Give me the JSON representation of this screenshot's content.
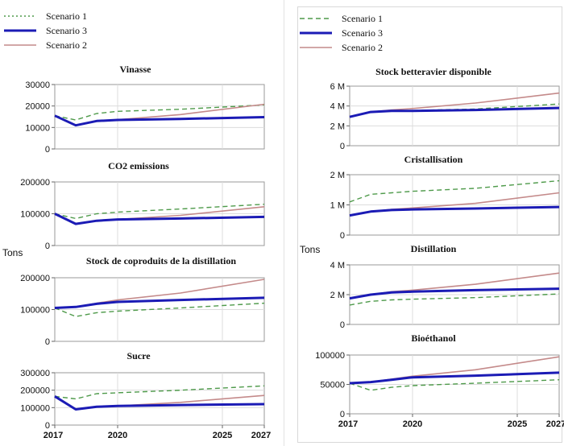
{
  "ylabel_left": "Tons",
  "ylabel_right": "Tons",
  "legend": [
    {
      "name": "Scenario 1",
      "color": "#4e9a4a",
      "style": "dotted"
    },
    {
      "name": "Scenario 3",
      "color": "#1b1bb5",
      "style": "solid-thick"
    },
    {
      "name": "Scenario 2",
      "color": "#c48a8a",
      "style": "solid"
    }
  ],
  "chart_data": [
    {
      "type": "line",
      "title": "Vinasse",
      "ylim": [
        0,
        30000
      ],
      "yticks": [
        0,
        10000,
        20000,
        30000
      ],
      "yticklabels": [
        "0",
        "10000",
        "20000",
        "30000"
      ],
      "xlim": [
        2017,
        2027
      ],
      "xticks": [
        2017,
        2020,
        2025,
        2027
      ],
      "series": [
        {
          "name": "Scenario 1",
          "x": [
            2017,
            2018,
            2019,
            2020,
            2023,
            2027
          ],
          "y": [
            15500,
            13500,
            16500,
            17500,
            18500,
            20500
          ]
        },
        {
          "name": "Scenario 3",
          "x": [
            2017,
            2018,
            2019,
            2020,
            2023,
            2027
          ],
          "y": [
            15500,
            11000,
            13000,
            13500,
            14000,
            14800
          ]
        },
        {
          "name": "Scenario 2",
          "x": [
            2017,
            2018,
            2019,
            2020,
            2023,
            2027
          ],
          "y": [
            15500,
            11000,
            13000,
            13600,
            16000,
            20800
          ]
        }
      ]
    },
    {
      "type": "line",
      "title": "CO2 emissions",
      "ylim": [
        0,
        200000
      ],
      "yticks": [
        0,
        100000,
        200000
      ],
      "yticklabels": [
        "0",
        "100000",
        "200000"
      ],
      "xlim": [
        2017,
        2027
      ],
      "xticks": [
        2017,
        2020,
        2025,
        2027
      ],
      "series": [
        {
          "name": "Scenario 1",
          "x": [
            2017,
            2018,
            2019,
            2020,
            2023,
            2027
          ],
          "y": [
            100000,
            85000,
            100000,
            105000,
            115000,
            130000
          ]
        },
        {
          "name": "Scenario 3",
          "x": [
            2017,
            2018,
            2019,
            2020,
            2023,
            2027
          ],
          "y": [
            100000,
            68000,
            78000,
            82000,
            85000,
            90000
          ]
        },
        {
          "name": "Scenario 2",
          "x": [
            2017,
            2018,
            2019,
            2020,
            2023,
            2027
          ],
          "y": [
            100000,
            68000,
            78000,
            82000,
            95000,
            122000
          ]
        }
      ]
    },
    {
      "type": "line",
      "title": "Stock de coproduits de la distillation",
      "ylim": [
        0,
        200000
      ],
      "yticks": [
        0,
        100000,
        200000
      ],
      "yticklabels": [
        "0",
        "100000",
        "200000"
      ],
      "xlim": [
        2017,
        2027
      ],
      "xticks": [
        2017,
        2020,
        2025,
        2027
      ],
      "series": [
        {
          "name": "Scenario 1",
          "x": [
            2017,
            2018,
            2019,
            2020,
            2023,
            2027
          ],
          "y": [
            105000,
            78000,
            90000,
            95000,
            105000,
            120000
          ]
        },
        {
          "name": "Scenario 3",
          "x": [
            2017,
            2018,
            2019,
            2020,
            2023,
            2027
          ],
          "y": [
            105000,
            108000,
            118000,
            124000,
            130000,
            137000
          ]
        },
        {
          "name": "Scenario 2",
          "x": [
            2017,
            2018,
            2019,
            2020,
            2023,
            2027
          ],
          "y": [
            105000,
            108000,
            120000,
            130000,
            152000,
            195000
          ]
        }
      ]
    },
    {
      "type": "line",
      "title": "Sucre",
      "ylim": [
        0,
        300000
      ],
      "yticks": [
        0,
        100000,
        200000,
        300000
      ],
      "yticklabels": [
        "0",
        "100000",
        "200000",
        "300000"
      ],
      "xlim": [
        2017,
        2027
      ],
      "xticks": [
        2017,
        2020,
        2025,
        2027
      ],
      "series": [
        {
          "name": "Scenario 1",
          "x": [
            2017,
            2018,
            2019,
            2020,
            2023,
            2027
          ],
          "y": [
            165000,
            150000,
            180000,
            185000,
            200000,
            225000
          ]
        },
        {
          "name": "Scenario 3",
          "x": [
            2017,
            2018,
            2019,
            2020,
            2023,
            2027
          ],
          "y": [
            165000,
            90000,
            105000,
            110000,
            115000,
            120000
          ]
        },
        {
          "name": "Scenario 2",
          "x": [
            2017,
            2018,
            2019,
            2020,
            2023,
            2027
          ],
          "y": [
            165000,
            90000,
            105000,
            110000,
            130000,
            170000
          ]
        }
      ]
    },
    {
      "type": "line",
      "title": "Stock betteravier disponible",
      "ylim": [
        0,
        6000000
      ],
      "yticks": [
        0,
        2000000,
        4000000,
        6000000
      ],
      "yticklabels": [
        "0",
        "2 M",
        "4 M",
        "6 M"
      ],
      "xlim": [
        2017,
        2027
      ],
      "xticks": [
        2017,
        2020,
        2025,
        2027
      ],
      "series": [
        {
          "name": "Scenario 1",
          "x": [
            2017,
            2018,
            2019,
            2020,
            2023,
            2027
          ],
          "y": [
            2900000,
            3400000,
            3500000,
            3550000,
            3700000,
            4200000
          ]
        },
        {
          "name": "Scenario 3",
          "x": [
            2017,
            2018,
            2019,
            2020,
            2023,
            2027
          ],
          "y": [
            2900000,
            3400000,
            3500000,
            3500000,
            3600000,
            3800000
          ]
        },
        {
          "name": "Scenario 2",
          "x": [
            2017,
            2018,
            2019,
            2020,
            2023,
            2027
          ],
          "y": [
            2900000,
            3400000,
            3600000,
            3750000,
            4300000,
            5300000
          ]
        }
      ]
    },
    {
      "type": "line",
      "title": "Cristallisation",
      "ylim": [
        0,
        2000000
      ],
      "yticks": [
        0,
        1000000,
        2000000
      ],
      "yticklabels": [
        "0",
        "1 M",
        "2 M"
      ],
      "xlim": [
        2017,
        2027
      ],
      "xticks": [
        2017,
        2020,
        2025,
        2027
      ],
      "series": [
        {
          "name": "Scenario 1",
          "x": [
            2017,
            2018,
            2019,
            2020,
            2023,
            2027
          ],
          "y": [
            1100000,
            1350000,
            1400000,
            1450000,
            1550000,
            1800000
          ]
        },
        {
          "name": "Scenario 3",
          "x": [
            2017,
            2018,
            2019,
            2020,
            2023,
            2027
          ],
          "y": [
            650000,
            780000,
            830000,
            850000,
            880000,
            930000
          ]
        },
        {
          "name": "Scenario 2",
          "x": [
            2017,
            2018,
            2019,
            2020,
            2023,
            2027
          ],
          "y": [
            650000,
            780000,
            850000,
            900000,
            1050000,
            1400000
          ]
        }
      ]
    },
    {
      "type": "line",
      "title": "Distillation",
      "ylim": [
        0,
        4000000
      ],
      "yticks": [
        0,
        2000000,
        4000000
      ],
      "yticklabels": [
        "0",
        "2 M",
        "4 M"
      ],
      "xlim": [
        2017,
        2027
      ],
      "xticks": [
        2017,
        2020,
        2025,
        2027
      ],
      "series": [
        {
          "name": "Scenario 1",
          "x": [
            2017,
            2018,
            2019,
            2020,
            2023,
            2027
          ],
          "y": [
            1300000,
            1550000,
            1650000,
            1700000,
            1800000,
            2050000
          ]
        },
        {
          "name": "Scenario 3",
          "x": [
            2017,
            2018,
            2019,
            2020,
            2023,
            2027
          ],
          "y": [
            1750000,
            2000000,
            2150000,
            2200000,
            2300000,
            2400000
          ]
        },
        {
          "name": "Scenario 2",
          "x": [
            2017,
            2018,
            2019,
            2020,
            2023,
            2027
          ],
          "y": [
            1750000,
            2000000,
            2200000,
            2300000,
            2700000,
            3450000
          ]
        }
      ]
    },
    {
      "type": "line",
      "title": "Bioéthanol",
      "ylim": [
        0,
        100000
      ],
      "yticks": [
        0,
        50000,
        100000
      ],
      "yticklabels": [
        "0",
        "50000",
        "100000"
      ],
      "xlim": [
        2017,
        2027
      ],
      "xticks": [
        2017,
        2020,
        2025,
        2027
      ],
      "series": [
        {
          "name": "Scenario 1",
          "x": [
            2017,
            2018,
            2019,
            2020,
            2023,
            2027
          ],
          "y": [
            52000,
            40000,
            45000,
            48000,
            52000,
            58000
          ]
        },
        {
          "name": "Scenario 3",
          "x": [
            2017,
            2018,
            2019,
            2020,
            2023,
            2027
          ],
          "y": [
            52000,
            54000,
            58000,
            62000,
            65000,
            70000
          ]
        },
        {
          "name": "Scenario 2",
          "x": [
            2017,
            2018,
            2019,
            2020,
            2023,
            2027
          ],
          "y": [
            52000,
            54000,
            59000,
            64000,
            75000,
            97000
          ]
        }
      ]
    }
  ]
}
